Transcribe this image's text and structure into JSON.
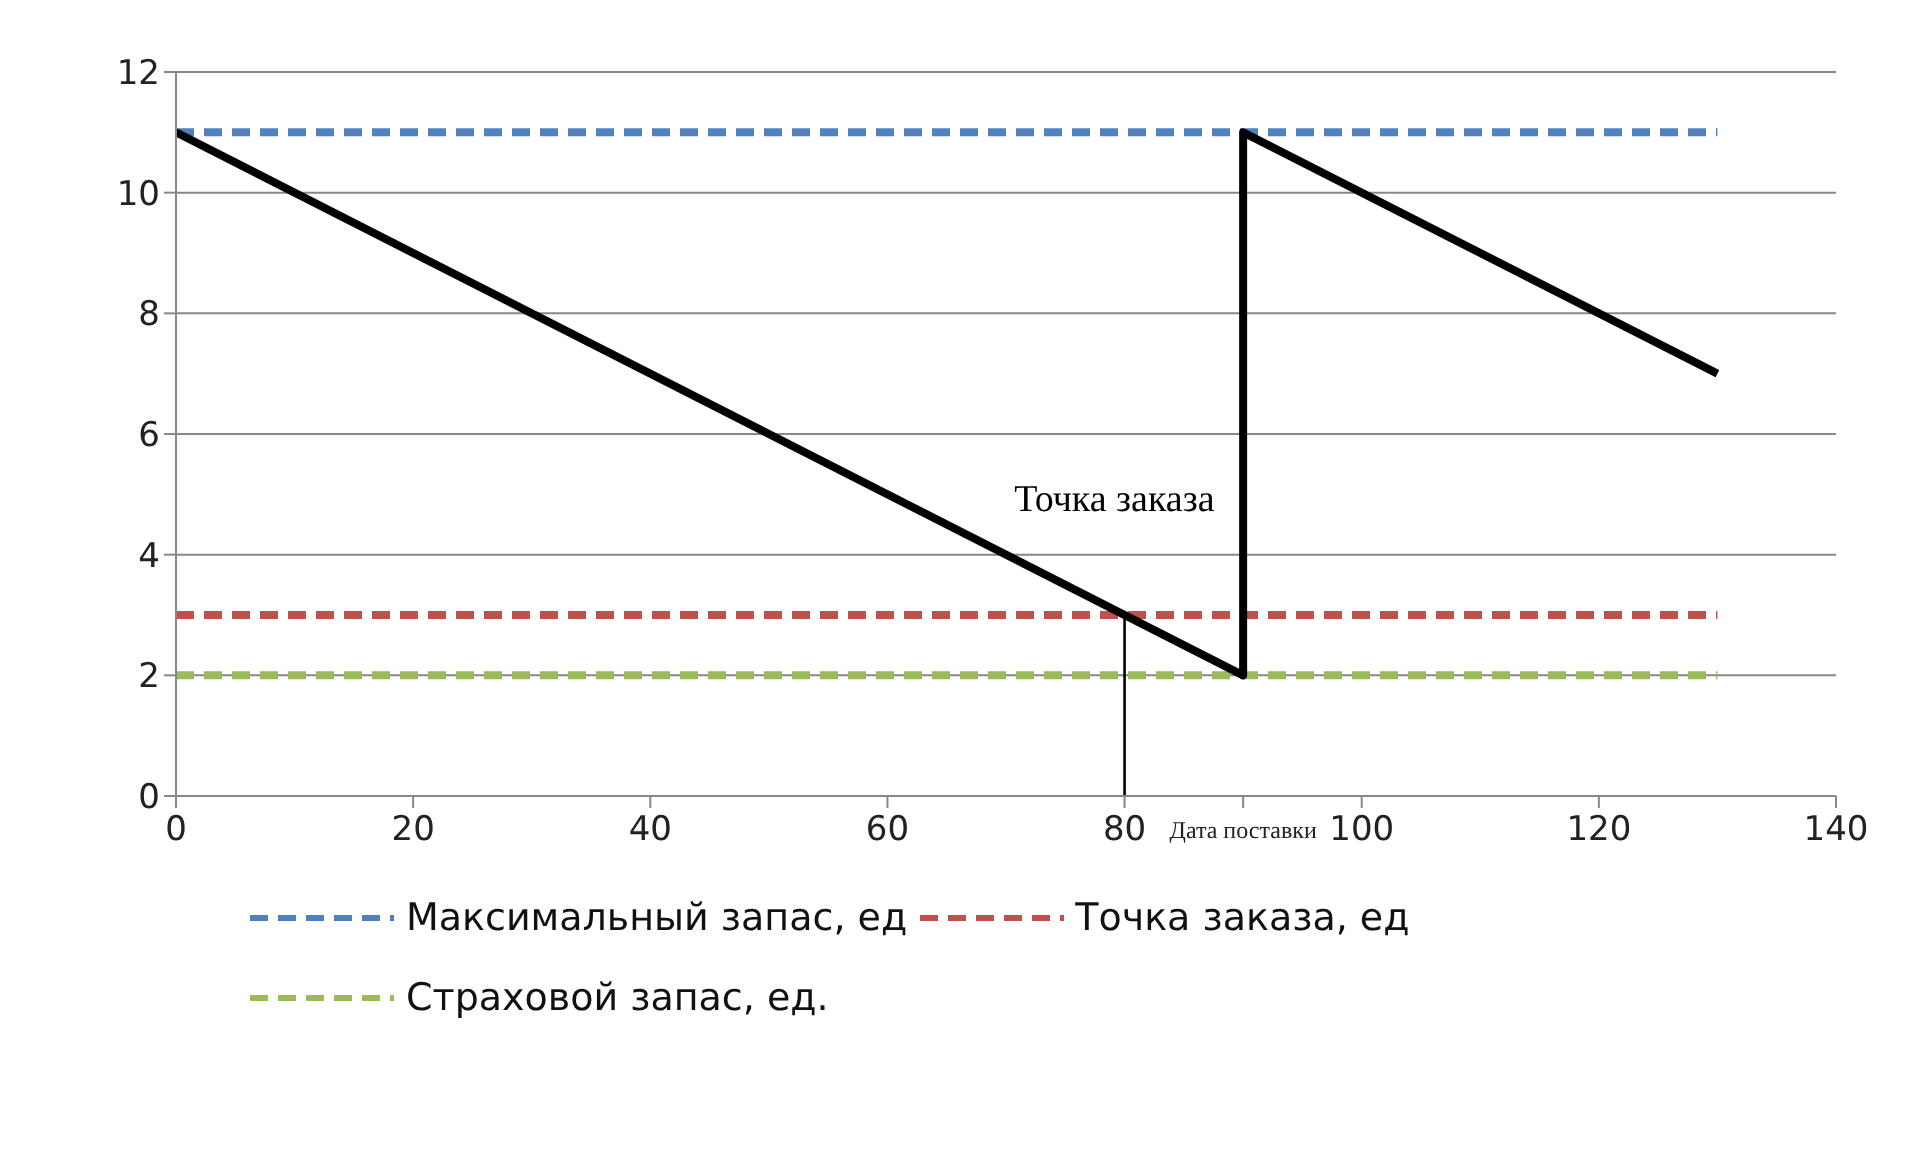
{
  "chart_data": {
    "type": "line",
    "xlim": [
      0,
      140
    ],
    "ylim": [
      0,
      12
    ],
    "xticks": [
      0,
      20,
      40,
      60,
      80,
      {
        "value": 90,
        "label": "Дата поставки"
      },
      100,
      120,
      140
    ],
    "yticks": [
      0,
      2,
      4,
      6,
      8,
      10,
      12
    ],
    "grid": "y",
    "legend": "bottom",
    "marker": "none",
    "series": [
      {
        "name": "Максимальный запас, ед",
        "color": "#4f81bd",
        "x": [
          0,
          130
        ],
        "values": [
          11,
          11
        ],
        "line_style": "dashed"
      },
      {
        "name": "Точка заказа, ед",
        "color": "#c0504d",
        "x": [
          0,
          130
        ],
        "values": [
          3,
          3
        ],
        "line_style": "dashed"
      },
      {
        "name": "Страховой запас, ед.",
        "color": "#9bbb59",
        "x": [
          0,
          130
        ],
        "values": [
          2,
          2
        ],
        "line_style": "dashed"
      },
      {
        "color": "#000000",
        "x": [
          0,
          90,
          90,
          130
        ],
        "values": [
          11,
          2,
          11,
          7
        ],
        "line_style": "solid"
      },
      {
        "color": "#000000",
        "x": [
          80,
          80
        ],
        "values": [
          3,
          0
        ],
        "line_style": "solid"
      }
    ],
    "annotations": [
      {
        "text": "Точка заказа",
        "x": 80,
        "y": 3
      }
    ]
  }
}
